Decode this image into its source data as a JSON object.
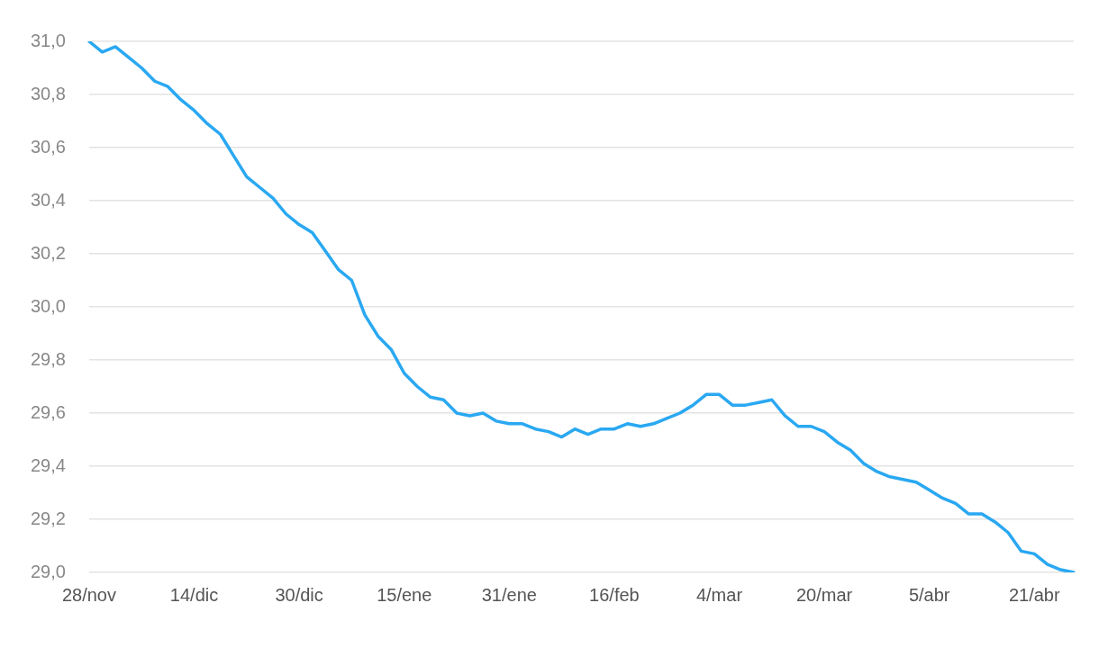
{
  "chart_data": {
    "type": "line",
    "categories": [
      "28/nov",
      null,
      null,
      null,
      null,
      null,
      null,
      null,
      "14/dic",
      null,
      null,
      null,
      null,
      null,
      null,
      null,
      "30/dic",
      null,
      null,
      null,
      null,
      null,
      null,
      null,
      "15/ene",
      null,
      null,
      null,
      null,
      null,
      null,
      null,
      "31/ene",
      null,
      null,
      null,
      null,
      null,
      null,
      null,
      "16/feb",
      null,
      null,
      null,
      null,
      null,
      null,
      null,
      "4/mar",
      null,
      null,
      null,
      null,
      null,
      null,
      null,
      "20/mar",
      null,
      null,
      null,
      null,
      null,
      null,
      null,
      "5/abr",
      null,
      null,
      null,
      null,
      null,
      null,
      null,
      "21/abr",
      null,
      null,
      null
    ],
    "series": [
      {
        "color": "#2aa8f2",
        "values": [
          31.0,
          30.96,
          30.98,
          30.94,
          30.9,
          30.85,
          30.83,
          30.78,
          30.74,
          30.69,
          30.65,
          30.57,
          30.49,
          30.45,
          30.41,
          30.35,
          30.31,
          30.28,
          30.21,
          30.14,
          30.1,
          29.97,
          29.89,
          29.84,
          29.75,
          29.7,
          29.66,
          29.65,
          29.6,
          29.59,
          29.6,
          29.57,
          29.56,
          29.56,
          29.54,
          29.53,
          29.51,
          29.54,
          29.52,
          29.54,
          29.54,
          29.56,
          29.55,
          29.56,
          29.58,
          29.6,
          29.63,
          29.67,
          29.67,
          29.63,
          29.63,
          29.64,
          29.65,
          29.59,
          29.55,
          29.55,
          29.53,
          29.49,
          29.46,
          29.41,
          29.38,
          29.36,
          29.35,
          29.34,
          29.31,
          29.28,
          29.26,
          29.22,
          29.22,
          29.19,
          29.15,
          29.08,
          29.07,
          29.03,
          29.01,
          29.0
        ]
      }
    ],
    "ylim": [
      29.0,
      31.0
    ],
    "yticks": [
      {
        "value": 29.0,
        "label": "29,0"
      },
      {
        "value": 29.2,
        "label": "29,2"
      },
      {
        "value": 29.4,
        "label": "29,4"
      },
      {
        "value": 29.6,
        "label": "29,6"
      },
      {
        "value": 29.8,
        "label": "29,8"
      },
      {
        "value": 30.0,
        "label": "30,0"
      },
      {
        "value": 30.2,
        "label": "30,2"
      },
      {
        "value": 30.4,
        "label": "30,4"
      },
      {
        "value": 30.6,
        "label": "30,6"
      },
      {
        "value": 30.8,
        "label": "30,8"
      },
      {
        "value": 31.0,
        "label": "31,0"
      }
    ],
    "grid": "y",
    "legend": false,
    "marker": "none",
    "line_style": "solid"
  }
}
